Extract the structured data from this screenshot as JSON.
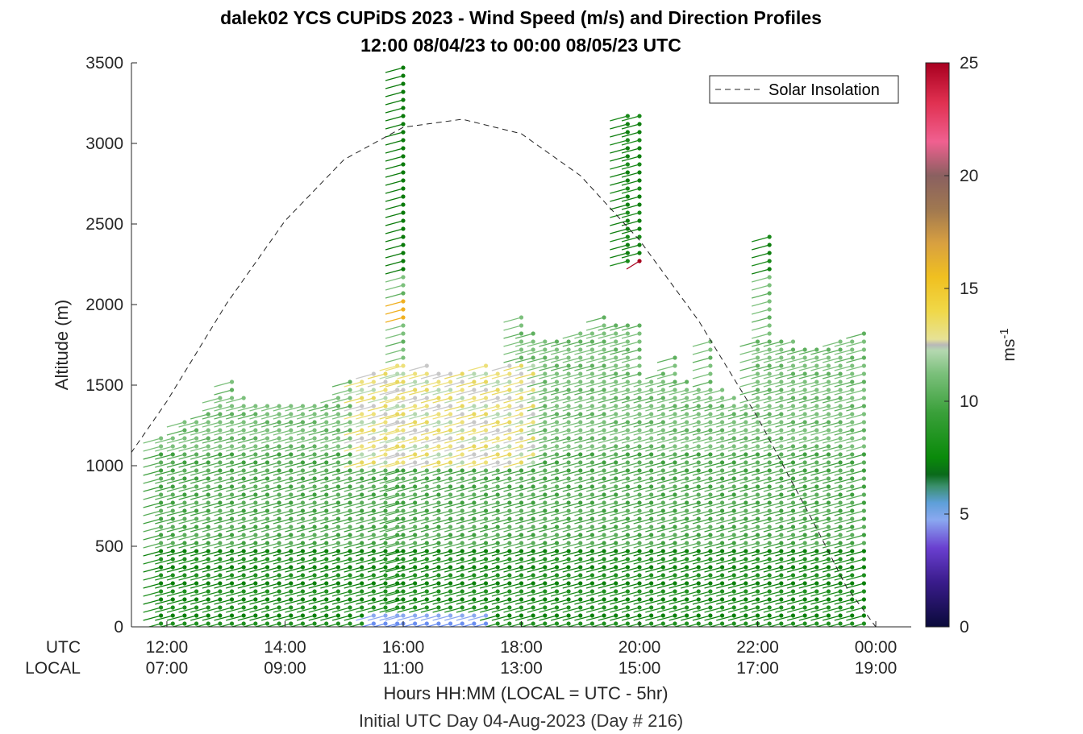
{
  "chart_data": {
    "type": "wind-barb-profile",
    "title": "dalek02 YCS CUPiDS 2023 - Wind Speed (m/s) and Direction Profiles",
    "subtitle": "12:00 08/04/23 to 00:00 08/05/23  UTC",
    "ylabel": "Altitude (m)",
    "xlabel": "Hours HH:MM  (LOCAL = UTC - 5hr)",
    "note": "Initial UTC Day 04-Aug-2023 (Day # 216)",
    "ylim": [
      0,
      3500
    ],
    "xlim_hours_utc": [
      11.4,
      24.6
    ],
    "y_ticks": [
      "0",
      "500",
      "1000",
      "1500",
      "2000",
      "2500",
      "3000",
      "3500"
    ],
    "x_row_labels": [
      "UTC",
      "LOCAL"
    ],
    "x_ticks_utc": [
      "12:00",
      "14:00",
      "16:00",
      "18:00",
      "20:00",
      "22:00",
      "00:00"
    ],
    "x_ticks_local": [
      "07:00",
      "09:00",
      "11:00",
      "13:00",
      "15:00",
      "17:00",
      "19:00"
    ],
    "x_tick_hours": [
      12,
      14,
      16,
      18,
      20,
      22,
      24
    ],
    "legend": [
      "Solar Insolation"
    ],
    "legend_position": "top-right",
    "colorbar": {
      "label": "ms-1",
      "ticks": [
        "0",
        "5",
        "10",
        "15",
        "20",
        "25"
      ],
      "range": [
        0,
        25
      ]
    },
    "solar_insolation": {
      "style": "dashed",
      "x": [
        11.3,
        12,
        13,
        14,
        15,
        16,
        17,
        18,
        19,
        20,
        21,
        22,
        23,
        23.5,
        24,
        24.3
      ],
      "y": [
        1030,
        1400,
        2000,
        2520,
        2900,
        3100,
        3150,
        3060,
        2800,
        2400,
        1900,
        1300,
        610,
        250,
        0,
        0
      ]
    },
    "profiles": [
      {
        "t": 11.9,
        "top": 1170
      },
      {
        "t": 12.1,
        "top": 1210
      },
      {
        "t": 12.3,
        "top": 1270
      },
      {
        "t": 12.5,
        "top": 1290
      },
      {
        "t": 12.7,
        "top": 1320
      },
      {
        "t": 12.9,
        "top": 1460
      },
      {
        "t": 13.1,
        "top": 1520
      },
      {
        "t": 13.3,
        "top": 1420
      },
      {
        "t": 13.5,
        "top": 1410
      },
      {
        "t": 13.7,
        "top": 1400
      },
      {
        "t": 13.9,
        "top": 1400
      },
      {
        "t": 14.1,
        "top": 1380
      },
      {
        "t": 14.3,
        "top": 1400
      },
      {
        "t": 14.5,
        "top": 1390
      },
      {
        "t": 14.7,
        "top": 1410
      },
      {
        "t": 14.9,
        "top": 1440
      },
      {
        "t": 15.1,
        "top": 1520
      },
      {
        "t": 15.3,
        "top": 1540
      },
      {
        "t": 15.5,
        "top": 1570
      },
      {
        "t": 15.7,
        "top": 1580
      },
      {
        "t": 15.9,
        "top": 1650
      },
      {
        "t": 16.0,
        "top": 3470
      },
      {
        "t": 16.2,
        "top": 1570
      },
      {
        "t": 16.4,
        "top": 1620
      },
      {
        "t": 16.6,
        "top": 1600
      },
      {
        "t": 16.8,
        "top": 1570
      },
      {
        "t": 17.0,
        "top": 1600
      },
      {
        "t": 17.2,
        "top": 1570
      },
      {
        "t": 17.4,
        "top": 1650
      },
      {
        "t": 17.6,
        "top": 1570
      },
      {
        "t": 17.8,
        "top": 1650
      },
      {
        "t": 18.0,
        "top": 1920
      },
      {
        "t": 18.2,
        "top": 1830
      },
      {
        "t": 18.4,
        "top": 1790
      },
      {
        "t": 18.6,
        "top": 1790
      },
      {
        "t": 18.8,
        "top": 1790
      },
      {
        "t": 19.0,
        "top": 1830
      },
      {
        "t": 19.2,
        "top": 1850
      },
      {
        "t": 19.4,
        "top": 1920
      },
      {
        "t": 19.6,
        "top": 1880
      },
      {
        "t": 19.8,
        "top": 3190
      },
      {
        "t": 20.0,
        "top": 3190
      },
      {
        "t": 20.2,
        "top": 1560
      },
      {
        "t": 20.4,
        "top": 1580
      },
      {
        "t": 20.6,
        "top": 1700
      },
      {
        "t": 20.8,
        "top": 1520
      },
      {
        "t": 21.0,
        "top": 1500
      },
      {
        "t": 21.2,
        "top": 1780
      },
      {
        "t": 21.4,
        "top": 1500
      },
      {
        "t": 21.6,
        "top": 1460
      },
      {
        "t": 21.8,
        "top": 1370
      },
      {
        "t": 22.0,
        "top": 1790
      },
      {
        "t": 22.2,
        "top": 2460
      },
      {
        "t": 22.4,
        "top": 1780
      },
      {
        "t": 22.6,
        "top": 1780
      },
      {
        "t": 22.8,
        "top": 1760
      },
      {
        "t": 23.0,
        "top": 1740
      },
      {
        "t": 23.2,
        "top": 1760
      },
      {
        "t": 23.4,
        "top": 1790
      },
      {
        "t": 23.6,
        "top": 1810
      },
      {
        "t": 23.8,
        "top": 1830
      }
    ]
  }
}
